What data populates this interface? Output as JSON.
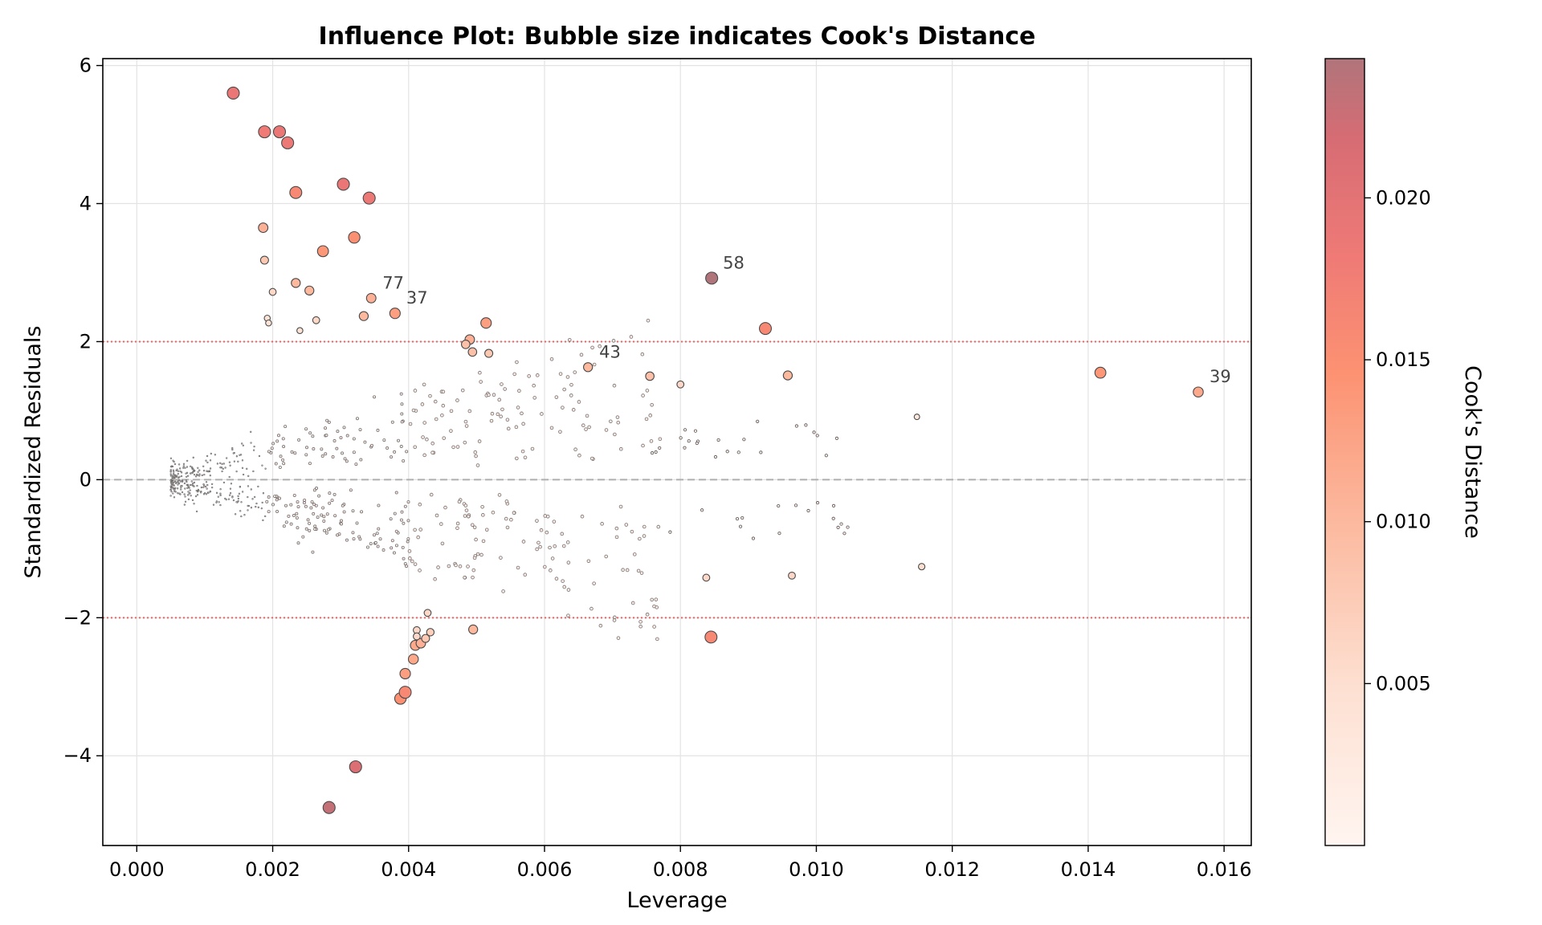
{
  "chart_data": {
    "type": "scatter",
    "title": "Influence Plot: Bubble size indicates Cook's Distance",
    "xlabel": "Leverage",
    "ylabel": "Standardized Residuals",
    "xlim": [
      -0.0005,
      0.0164
    ],
    "ylim": [
      -5.3,
      6.1
    ],
    "xticks": [
      0.0,
      0.002,
      0.004,
      0.006,
      0.008,
      0.01,
      0.012,
      0.014,
      0.016
    ],
    "xtick_labels": [
      "0.000",
      "0.002",
      "0.004",
      "0.006",
      "0.008",
      "0.010",
      "0.012",
      "0.014",
      "0.016"
    ],
    "yticks": [
      -4,
      -2,
      0,
      2,
      4,
      6
    ],
    "ytick_labels": [
      "−4",
      "−2",
      "0",
      "2",
      "4",
      "6"
    ],
    "grid": true,
    "reference_lines": [
      {
        "y": 0,
        "style": "dashed",
        "color": "#a0a0a0"
      },
      {
        "y": 2,
        "style": "dotted",
        "color": "#e05050"
      },
      {
        "y": -2,
        "style": "dotted",
        "color": "#e05050"
      }
    ],
    "colorbar": {
      "label": "Cook's Distance",
      "range": [
        0.0,
        0.0243
      ],
      "ticks": [
        0.005,
        0.01,
        0.015,
        0.02
      ],
      "tick_labels": [
        "0.005",
        "0.010",
        "0.015",
        "0.020"
      ],
      "colormap": "Reds",
      "stops": [
        "#fff5f0",
        "#fde0d2",
        "#fcbba1",
        "#fc9272",
        "#ef7a76",
        "#d66c74",
        "#b0757b"
      ]
    },
    "points": [
      {
        "x": 0.00142,
        "y": 5.6,
        "cook": 0.019
      },
      {
        "x": 0.00188,
        "y": 5.04,
        "cook": 0.018
      },
      {
        "x": 0.0021,
        "y": 5.04,
        "cook": 0.019
      },
      {
        "x": 0.00222,
        "y": 4.88,
        "cook": 0.0185
      },
      {
        "x": 0.00234,
        "y": 4.16,
        "cook": 0.016
      },
      {
        "x": 0.00304,
        "y": 4.28,
        "cook": 0.019
      },
      {
        "x": 0.00342,
        "y": 4.08,
        "cook": 0.0185
      },
      {
        "x": 0.00186,
        "y": 3.65,
        "cook": 0.011
      },
      {
        "x": 0.00188,
        "y": 3.18,
        "cook": 0.008
      },
      {
        "x": 0.00274,
        "y": 3.31,
        "cook": 0.014
      },
      {
        "x": 0.0032,
        "y": 3.51,
        "cook": 0.015
      },
      {
        "x": 0.00234,
        "y": 2.85,
        "cook": 0.01
      },
      {
        "x": 0.00254,
        "y": 2.74,
        "cook": 0.01
      },
      {
        "x": 0.002,
        "y": 2.72,
        "cook": 0.006
      },
      {
        "x": 0.00345,
        "y": 2.63,
        "cook": 0.011
      },
      {
        "x": 0.0038,
        "y": 2.41,
        "cook": 0.013
      },
      {
        "x": 0.00334,
        "y": 2.37,
        "cook": 0.01
      },
      {
        "x": 0.00264,
        "y": 2.31,
        "cook": 0.006
      },
      {
        "x": 0.00192,
        "y": 2.34,
        "cook": 0.004
      },
      {
        "x": 0.00194,
        "y": 2.27,
        "cook": 0.004
      },
      {
        "x": 0.0024,
        "y": 2.16,
        "cook": 0.004
      },
      {
        "x": 0.00514,
        "y": 2.27,
        "cook": 0.013
      },
      {
        "x": 0.0049,
        "y": 2.03,
        "cook": 0.011
      },
      {
        "x": 0.00484,
        "y": 1.96,
        "cook": 0.009
      },
      {
        "x": 0.00494,
        "y": 1.85,
        "cook": 0.009
      },
      {
        "x": 0.00518,
        "y": 1.83,
        "cook": 0.008
      },
      {
        "x": 0.00664,
        "y": 1.63,
        "cook": 0.01
      },
      {
        "x": 0.00755,
        "y": 1.5,
        "cook": 0.009
      },
      {
        "x": 0.00958,
        "y": 1.51,
        "cook": 0.01
      },
      {
        "x": 0.008,
        "y": 1.38,
        "cook": 0.006
      },
      {
        "x": 0.00846,
        "y": 2.92,
        "cook": 0.0243
      },
      {
        "x": 0.00925,
        "y": 2.19,
        "cook": 0.016
      },
      {
        "x": 0.01418,
        "y": 1.55,
        "cook": 0.014
      },
      {
        "x": 0.01562,
        "y": 1.27,
        "cook": 0.012
      },
      {
        "x": 0.01148,
        "y": 0.91,
        "cook": 0.003
      },
      {
        "x": 0.00845,
        "y": -2.28,
        "cook": 0.016
      },
      {
        "x": 0.00495,
        "y": -2.17,
        "cook": 0.01
      },
      {
        "x": 0.00964,
        "y": -1.39,
        "cook": 0.006
      },
      {
        "x": 0.00838,
        "y": -1.42,
        "cook": 0.006
      },
      {
        "x": 0.01155,
        "y": -1.26,
        "cook": 0.005
      },
      {
        "x": 0.00322,
        "y": -4.16,
        "cook": 0.021
      },
      {
        "x": 0.00283,
        "y": -4.75,
        "cook": 0.023
      },
      {
        "x": 0.00388,
        "y": -3.17,
        "cook": 0.015
      },
      {
        "x": 0.00395,
        "y": -3.08,
        "cook": 0.016
      },
      {
        "x": 0.00395,
        "y": -2.81,
        "cook": 0.013
      },
      {
        "x": 0.00407,
        "y": -2.6,
        "cook": 0.012
      },
      {
        "x": 0.0041,
        "y": -2.4,
        "cook": 0.012
      },
      {
        "x": 0.00418,
        "y": -2.37,
        "cook": 0.011
      },
      {
        "x": 0.00425,
        "y": -2.3,
        "cook": 0.008
      },
      {
        "x": 0.00432,
        "y": -2.21,
        "cook": 0.007
      },
      {
        "x": 0.00412,
        "y": -2.18,
        "cook": 0.006
      },
      {
        "x": 0.00412,
        "y": -2.27,
        "cook": 0.006
      },
      {
        "x": 0.00428,
        "y": -1.93,
        "cook": 0.006
      }
    ],
    "small_points_note": "plus several hundred near-zero Cook's distance points clustered between leverage 0.0005 and 0.0104",
    "annotations": [
      {
        "text": "58",
        "x": 0.00846,
        "y": 2.92
      },
      {
        "text": "77",
        "x": 0.00345,
        "y": 2.63
      },
      {
        "text": "37",
        "x": 0.0038,
        "y": 2.41
      },
      {
        "text": "43",
        "x": 0.00664,
        "y": 1.63
      },
      {
        "text": "39",
        "x": 0.01562,
        "y": 1.27
      }
    ]
  }
}
